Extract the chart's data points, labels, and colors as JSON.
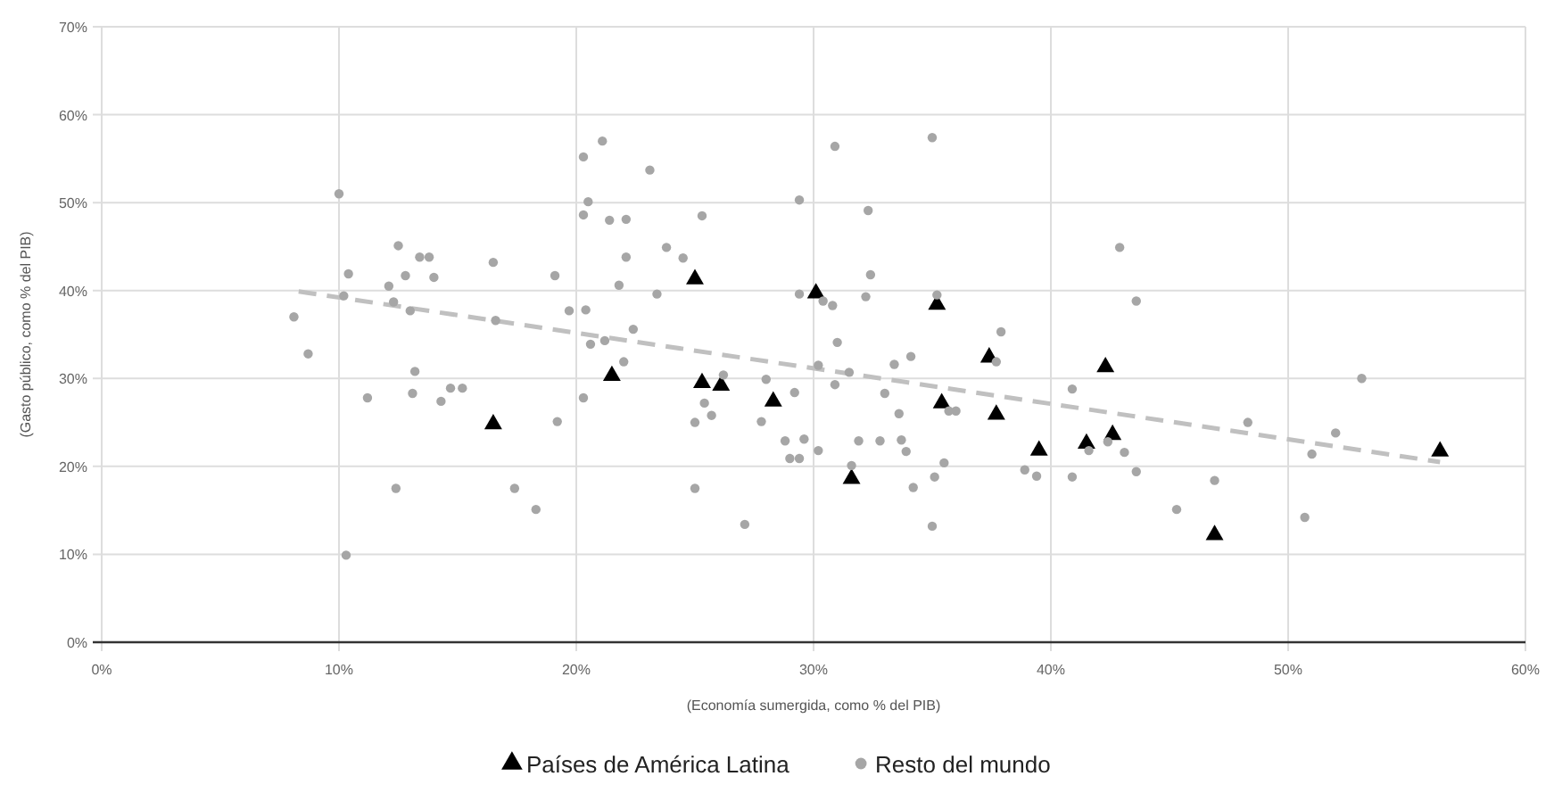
{
  "chart_data": {
    "type": "scatter",
    "xlabel": "(Economía sumergida, como % del PIB)",
    "ylabel": "(Gasto público, como % del PIB)",
    "xlim": [
      0,
      60
    ],
    "ylim": [
      0,
      70
    ],
    "xticks": [
      {
        "value": 0,
        "label": "0%"
      },
      {
        "value": 10,
        "label": "10%"
      },
      {
        "value": 20,
        "label": "20%"
      },
      {
        "value": 30,
        "label": "30%"
      },
      {
        "value": 40,
        "label": "40%"
      },
      {
        "value": 50,
        "label": "50%"
      },
      {
        "value": 60,
        "label": "60%"
      }
    ],
    "yticks": [
      {
        "value": 0,
        "label": "0%"
      },
      {
        "value": 10,
        "label": "10%"
      },
      {
        "value": 20,
        "label": "20%"
      },
      {
        "value": 30,
        "label": "30%"
      },
      {
        "value": 40,
        "label": "40%"
      },
      {
        "value": 50,
        "label": "50%"
      },
      {
        "value": 60,
        "label": "60%"
      },
      {
        "value": 70,
        "label": "70%"
      }
    ],
    "grid": true,
    "legend": "bottom",
    "series": [
      {
        "type": "line",
        "color": "#c0c0c0",
        "line_style": "dashed",
        "marker": "none",
        "x": [
          8.3,
          56.4
        ],
        "values": [
          39.9,
          20.5
        ]
      },
      {
        "name": "Países de América Latina",
        "marker": "triangle",
        "color": "#000000",
        "x": [
          16.5,
          21.5,
          25.0,
          30.1,
          35.2,
          37.4,
          25.3,
          26.1,
          28.3,
          35.4,
          37.7,
          39.5,
          31.6,
          42.3,
          41.5,
          42.6,
          46.9,
          56.4
        ],
        "values": [
          24.8,
          30.3,
          41.3,
          39.7,
          38.4,
          32.4,
          29.5,
          29.2,
          27.4,
          27.2,
          25.9,
          21.8,
          18.6,
          31.3,
          22.6,
          23.6,
          12.2,
          21.7
        ]
      },
      {
        "name": "Resto del mundo",
        "marker": "circle",
        "color": "#a6a6a6",
        "x": [
          21.1,
          20.3,
          23.1,
          10.0,
          20.5,
          20.3,
          21.4,
          22.1,
          12.5,
          13.4,
          13.8,
          16.5,
          22.1,
          10.4,
          12.8,
          14.0,
          19.1,
          12.1,
          21.8,
          10.2,
          12.3,
          13.0,
          8.1,
          16.6,
          19.7,
          20.4,
          22.4,
          20.6,
          21.2,
          22.0,
          8.7,
          13.2,
          11.2,
          13.1,
          14.3,
          14.7,
          15.2,
          20.3,
          19.2,
          12.4,
          17.4,
          18.3,
          10.3,
          30.9,
          35.0,
          29.4,
          25.3,
          32.3,
          23.8,
          24.5,
          32.4,
          23.4,
          29.4,
          30.4,
          30.8,
          32.2,
          35.2,
          37.9,
          31.0,
          34.1,
          33.4,
          37.7,
          30.2,
          31.5,
          26.2,
          28.0,
          30.9,
          29.2,
          25.4,
          33.0,
          33.6,
          35.7,
          36.0,
          25.0,
          25.7,
          27.8,
          28.8,
          29.6,
          30.2,
          29.0,
          29.4,
          31.9,
          32.8,
          33.7,
          33.9,
          35.5,
          35.1,
          31.6,
          34.2,
          38.9,
          39.4,
          25.0,
          27.1,
          35.0,
          42.9,
          43.6,
          40.9,
          53.1,
          48.3,
          52.0,
          42.4,
          41.6,
          43.1,
          51.0,
          40.9,
          43.6,
          46.9,
          45.3,
          50.7
        ],
        "values": [
          57.0,
          55.2,
          53.7,
          51.0,
          50.1,
          48.6,
          48.0,
          48.1,
          45.1,
          43.8,
          43.8,
          43.2,
          43.8,
          41.9,
          41.7,
          41.5,
          41.7,
          40.5,
          40.6,
          39.4,
          38.7,
          37.7,
          37.0,
          36.6,
          37.7,
          37.8,
          35.6,
          33.9,
          34.3,
          31.9,
          32.8,
          30.8,
          27.8,
          28.3,
          27.4,
          28.9,
          28.9,
          27.8,
          25.1,
          17.5,
          17.5,
          15.1,
          9.9,
          56.4,
          57.4,
          50.3,
          48.5,
          49.1,
          44.9,
          43.7,
          41.8,
          39.6,
          39.6,
          38.8,
          38.3,
          39.3,
          39.5,
          35.3,
          34.1,
          32.5,
          31.6,
          31.9,
          31.5,
          30.7,
          30.4,
          29.9,
          29.3,
          28.4,
          27.2,
          28.3,
          26.0,
          26.3,
          26.3,
          25.0,
          25.8,
          25.1,
          22.9,
          23.1,
          21.8,
          20.9,
          20.9,
          22.9,
          22.9,
          23.0,
          21.7,
          20.4,
          18.8,
          20.1,
          17.6,
          19.6,
          18.9,
          17.5,
          13.4,
          13.2,
          44.9,
          38.8,
          28.8,
          30.0,
          25.0,
          23.8,
          22.8,
          21.8,
          21.6,
          21.4,
          18.8,
          19.4,
          18.4,
          15.1,
          14.2
        ]
      }
    ]
  }
}
